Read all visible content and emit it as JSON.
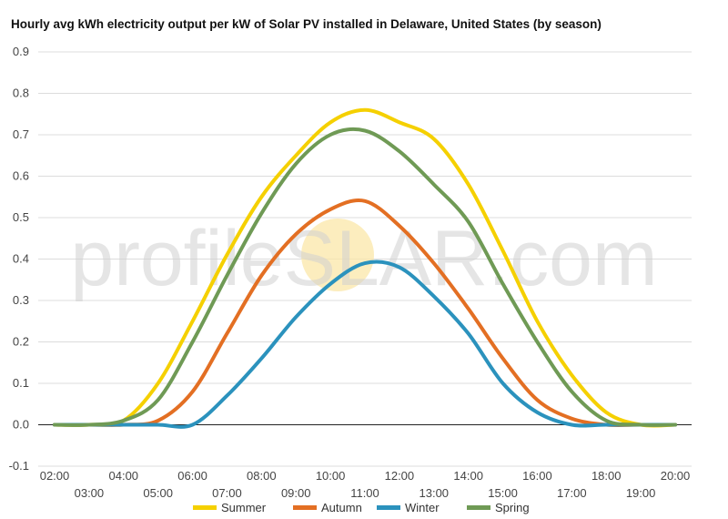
{
  "chart_data": {
    "type": "line",
    "title": "Hourly avg kWh electricity output per kW of Solar PV installed in Delaware, United States (by season)",
    "xlabel": "",
    "ylabel": "",
    "categories": [
      "02:00",
      "03:00",
      "04:00",
      "05:00",
      "06:00",
      "07:00",
      "08:00",
      "09:00",
      "10:00",
      "11:00",
      "12:00",
      "13:00",
      "14:00",
      "15:00",
      "16:00",
      "17:00",
      "18:00",
      "19:00",
      "20:00"
    ],
    "yticks": [
      "0.9",
      "0.8",
      "0.7",
      "0.6",
      "0.5",
      "0.4",
      "0.3",
      "0.2",
      "0.1",
      "0.0",
      "-0.1"
    ],
    "ylim": [
      -0.1,
      0.9
    ],
    "grid": true,
    "legend_position": "bottom",
    "series": [
      {
        "name": "Summer",
        "color": "#f5d000",
        "values": [
          0,
          0,
          0.01,
          0.1,
          0.25,
          0.41,
          0.55,
          0.65,
          0.73,
          0.76,
          0.73,
          0.69,
          0.58,
          0.42,
          0.25,
          0.12,
          0.03,
          0.0,
          0.0
        ]
      },
      {
        "name": "Autumn",
        "color": "#e36f23",
        "values": [
          0,
          0,
          0,
          0.01,
          0.08,
          0.22,
          0.36,
          0.46,
          0.52,
          0.54,
          0.48,
          0.39,
          0.28,
          0.16,
          0.06,
          0.015,
          0.0,
          0.0,
          0.0
        ]
      },
      {
        "name": "Winter",
        "color": "#2b92bd",
        "values": [
          0,
          0,
          0,
          0.0,
          0.0,
          0.07,
          0.16,
          0.26,
          0.34,
          0.39,
          0.38,
          0.31,
          0.22,
          0.1,
          0.03,
          0.0,
          0.0,
          0.0,
          0.0
        ]
      },
      {
        "name": "Spring",
        "color": "#6f9a55",
        "values": [
          0,
          0,
          0.01,
          0.06,
          0.2,
          0.36,
          0.51,
          0.63,
          0.7,
          0.71,
          0.66,
          0.58,
          0.49,
          0.34,
          0.2,
          0.08,
          0.01,
          0.0,
          0.0
        ]
      }
    ]
  },
  "watermark": {
    "prefix": "profile",
    "s": "S",
    "suffix": "LAR.com",
    "sun_color": "#fbe7a8"
  }
}
